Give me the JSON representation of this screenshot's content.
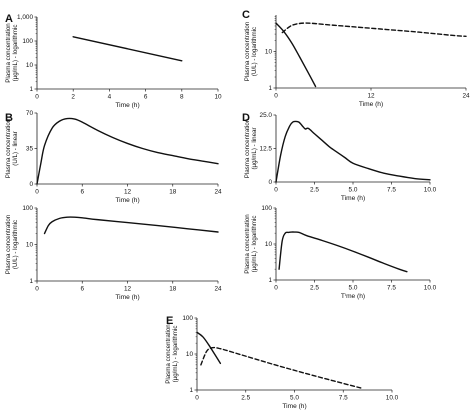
{
  "colors": {
    "line": "#111111",
    "axis": "#222222",
    "background": "#ffffff"
  },
  "chart_data": [
    {
      "id": "A",
      "panel_label": "A",
      "type": "line",
      "yscale": "log",
      "xlim": [
        0,
        10
      ],
      "ylim": [
        1,
        1000
      ],
      "xticks": [
        0,
        2,
        4,
        6,
        8,
        10
      ],
      "xticklabels": [
        "0",
        "2",
        "4",
        "6",
        "8",
        "10"
      ],
      "yticks": [
        1,
        10,
        100,
        1000
      ],
      "yticklabels": [
        "1",
        "10",
        "100",
        "1,000"
      ],
      "xlabel": "Time (h)",
      "ylabel": [
        "Plasma concentration",
        "(µg/mL) - logarithmic"
      ],
      "series": [
        {
          "style": "solid",
          "x": [
            2,
            8
          ],
          "y": [
            150,
            15
          ]
        }
      ]
    },
    {
      "id": "C",
      "panel_label": "C",
      "type": "line",
      "yscale": "log",
      "xlim": [
        0,
        24
      ],
      "ylim": [
        1,
        100
      ],
      "xticks": [
        0,
        12,
        24
      ],
      "xticklabels": [
        "0",
        "12",
        "24"
      ],
      "yticks": [
        1,
        10
      ],
      "yticklabels": [
        "1",
        "10"
      ],
      "xlabel": "Time (h)",
      "ylabel": [
        "Plasma concentration",
        "(U/L) - logarithmic"
      ],
      "series": [
        {
          "style": "solid",
          "x": [
            0,
            1,
            2,
            3,
            4,
            5
          ],
          "y": [
            60,
            35,
            17,
            7,
            2.8,
            1.1
          ]
        },
        {
          "style": "dashed",
          "x": [
            0.8,
            2,
            3.5,
            5,
            7,
            10,
            14,
            18,
            22,
            24
          ],
          "y": [
            33,
            52,
            60,
            58,
            53,
            47,
            40,
            34,
            28,
            26
          ]
        }
      ]
    },
    {
      "id": "B1",
      "panel_label": "B",
      "type": "line",
      "yscale": "linear",
      "xlim": [
        0,
        24
      ],
      "ylim": [
        0,
        70
      ],
      "xticks": [
        0,
        6,
        12,
        18,
        24
      ],
      "xticklabels": [
        "0",
        "6",
        "12",
        "18",
        "24"
      ],
      "yticks": [
        0,
        35,
        70
      ],
      "yticklabels": [
        "0",
        "35",
        "70"
      ],
      "xlabel": "Time (h)",
      "ylabel": [
        "Plasma concentration",
        "(U/L) - linear"
      ],
      "series": [
        {
          "style": "solid",
          "x": [
            0,
            0.5,
            1,
            2,
            3,
            4,
            5,
            6,
            8,
            10,
            12,
            14,
            16,
            18,
            20,
            22,
            24
          ],
          "y": [
            0,
            20,
            38,
            55,
            62,
            64.5,
            64,
            61,
            53,
            46,
            40,
            35,
            31,
            28,
            25,
            22.5,
            20
          ]
        }
      ]
    },
    {
      "id": "B2",
      "panel_label": "",
      "type": "line",
      "yscale": "log",
      "xlim": [
        0,
        24
      ],
      "ylim": [
        1,
        100
      ],
      "xticks": [
        0,
        6,
        12,
        18,
        24
      ],
      "xticklabels": [
        "0",
        "6",
        "12",
        "18",
        "24"
      ],
      "yticks": [
        1,
        10,
        100
      ],
      "yticklabels": [
        "1",
        "10",
        "100"
      ],
      "xlabel": "Time (h)",
      "ylabel": [
        "Plasma concentration",
        "(U/L) - logarithmic"
      ],
      "series": [
        {
          "style": "solid",
          "x": [
            1,
            1.5,
            2,
            3,
            4,
            5,
            6,
            8,
            12,
            16,
            20,
            24
          ],
          "y": [
            20,
            33,
            42,
            52,
            56,
            56,
            54,
            48,
            40,
            33,
            27,
            22
          ]
        }
      ]
    },
    {
      "id": "D1",
      "panel_label": "D",
      "type": "line",
      "yscale": "linear",
      "xlim": [
        0,
        10
      ],
      "ylim": [
        0,
        25
      ],
      "xticks": [
        0,
        2.5,
        5,
        7.5,
        10
      ],
      "xticklabels": [
        "0",
        "2.5",
        "5.0",
        "7.5",
        "10.0"
      ],
      "yticks": [
        0,
        12.5,
        25
      ],
      "yticklabels": [
        "0",
        "12.5",
        "25.0"
      ],
      "xlabel": "Time (h)",
      "ylabel": [
        "Plasma concentration",
        "(µg/mL) - linear"
      ],
      "series": [
        {
          "style": "solid",
          "x": [
            0,
            0.3,
            0.6,
            0.9,
            1.1,
            1.3,
            1.5,
            1.7,
            1.9,
            2.1,
            2.5,
            3,
            3.5,
            4,
            4.5,
            5,
            6,
            7,
            8,
            9,
            10
          ],
          "y": [
            0,
            10,
            17,
            21,
            22.4,
            22.6,
            22.3,
            21,
            19.8,
            20,
            18,
            15.5,
            13,
            11,
            9,
            7,
            5,
            3.3,
            2.2,
            1.3,
            0.8
          ]
        }
      ]
    },
    {
      "id": "D2",
      "panel_label": "",
      "type": "line",
      "yscale": "log",
      "xlim": [
        0,
        10
      ],
      "ylim": [
        1,
        100
      ],
      "xticks": [
        0,
        2.5,
        5,
        7.5,
        10
      ],
      "xticklabels": [
        "0",
        "2.5",
        "5.0",
        "7.5",
        "10.0"
      ],
      "yticks": [
        1,
        10,
        100
      ],
      "yticklabels": [
        "1",
        "10",
        "100"
      ],
      "xlabel": "Tⁱme (h)",
      "ylabel": [
        "Plasma concentration",
        "(µg/mL) - logarithmic"
      ],
      "series": [
        {
          "style": "solid",
          "x": [
            0.2,
            0.4,
            0.6,
            0.8,
            1,
            1.2,
            1.5,
            2,
            3,
            4,
            5,
            6,
            7,
            8,
            8.5
          ],
          "y": [
            2,
            12,
            20,
            21,
            21.5,
            21.5,
            21,
            17,
            12.5,
            9,
            6.3,
            4.3,
            2.9,
            2,
            1.7
          ]
        }
      ]
    },
    {
      "id": "E",
      "panel_label": "E",
      "type": "line",
      "yscale": "log",
      "xlim": [
        0,
        10
      ],
      "ylim": [
        1,
        100
      ],
      "xticks": [
        0,
        2.5,
        5,
        7.5,
        10
      ],
      "xticklabels": [
        "0",
        "2.5",
        "5.0",
        "7.5",
        "10.0"
      ],
      "yticks": [
        1,
        10,
        100
      ],
      "yticklabels": [
        "1",
        "10",
        "100"
      ],
      "xlabel": "Time (h)",
      "ylabel": [
        "Plasma concentration",
        "(µg/mL) - logarithmic"
      ],
      "series": [
        {
          "style": "solid",
          "x": [
            0,
            0.3,
            0.6,
            0.9,
            1.2
          ],
          "y": [
            40,
            30,
            18,
            10,
            5.5
          ]
        },
        {
          "style": "dashed",
          "x": [
            0.2,
            0.5,
            0.8,
            1.2,
            2,
            4,
            6,
            8.5
          ],
          "y": [
            5,
            12,
            15,
            14,
            10.5,
            5,
            2.5,
            1.1
          ]
        }
      ]
    }
  ]
}
